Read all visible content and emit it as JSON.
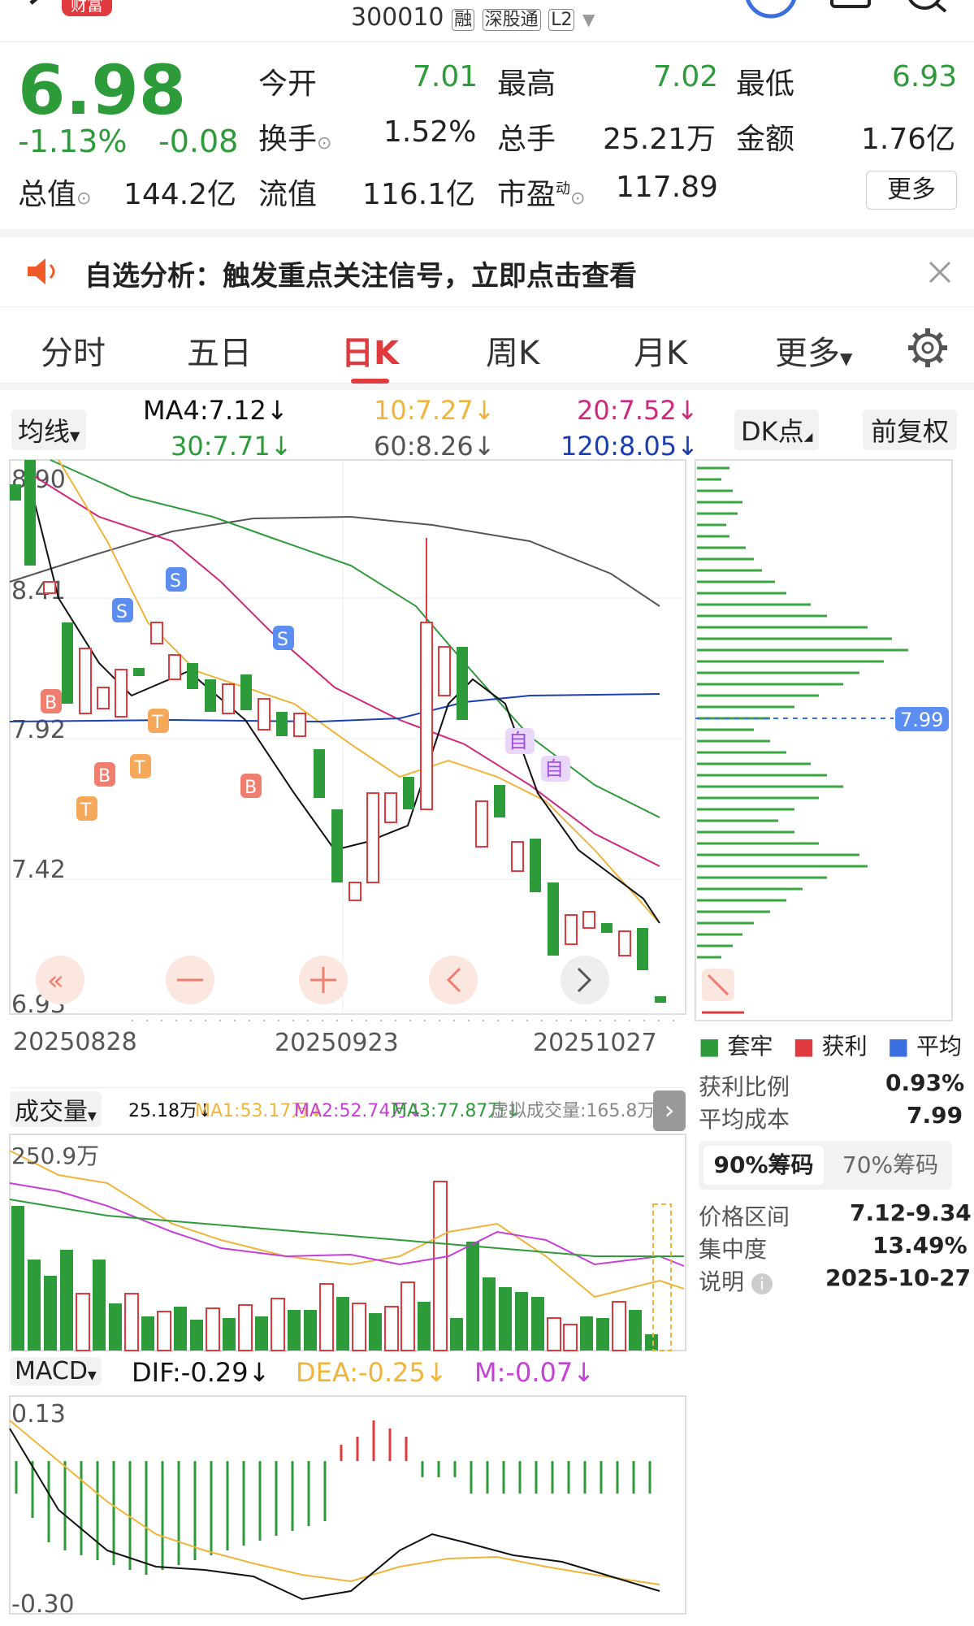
{
  "header": {
    "back_icon": "back-chevron-icon",
    "brand_badge": "财富",
    "stock_code": "300010",
    "tag_rong": "融",
    "tag_exchange": "深股通",
    "tag_l2": "L2",
    "dropdown_icon": "triangle-down-icon",
    "right_icons": [
      "circle-logo-icon",
      "square-icon",
      "search-icon"
    ]
  },
  "quote": {
    "price": "6.98",
    "change_pct": "-1.13%",
    "change_amt": "-0.08",
    "fields": [
      {
        "label": "今开",
        "value": "7.01"
      },
      {
        "label": "最高",
        "value": "7.02"
      },
      {
        "label": "最低",
        "value": "6.93"
      },
      {
        "label": "换手",
        "value": "1.52%"
      },
      {
        "label": "总手",
        "value": "25.21万"
      },
      {
        "label": "金额",
        "value": "1.76亿"
      },
      {
        "label": "总值",
        "value": "144.2亿"
      },
      {
        "label": "流值",
        "value": "116.1亿"
      },
      {
        "label": "市盈",
        "value": "117.89"
      }
    ],
    "pe_superscript": "动",
    "more_button": "更多"
  },
  "alert": {
    "text": "自选分析：触发重点关注信号，立即点击查看",
    "colors": {
      "speaker": "#f05a28"
    }
  },
  "tabs": {
    "items": [
      "分时",
      "五日",
      "日K",
      "周K",
      "月K",
      "更多"
    ],
    "active": "日K",
    "settings_icon": "gear-icon"
  },
  "ma_bar": {
    "selector": "均线",
    "ma4": "MA4:7.12",
    "ma10": "10:7.27",
    "ma20": "20:7.52",
    "ma30": "30:7.71",
    "ma60": "60:8.26",
    "ma120": "120:8.05",
    "dk_button": "DK点",
    "fq_button": "前复权"
  },
  "kline": {
    "y_labels": [
      "8.90",
      "8.41",
      "7.92",
      "7.42",
      "6.93"
    ],
    "x_labels": [
      "20250828",
      "20250923",
      "20251027"
    ],
    "signals": {
      "S": "S",
      "B": "B",
      "T": "T",
      "Z": "自"
    },
    "nav_buttons": [
      "double-left-icon",
      "minus-icon",
      "plus-icon",
      "left-icon",
      "right-icon"
    ]
  },
  "chips": {
    "price_tag": "7.99",
    "legend": [
      "套牢",
      "获利",
      "平均"
    ],
    "profit_ratio_label": "获利比例",
    "profit_ratio": "0.93%",
    "avg_cost_label": "平均成本",
    "avg_cost": "7.99",
    "tab90": "90%筹码",
    "tab70": "70%筹码",
    "range_label": "价格区间",
    "range": "7.12-9.34",
    "conc_label": "集中度",
    "conc": "13.49%",
    "note_label": "说明",
    "note": "2025-10-27"
  },
  "volume": {
    "selector": "成交量",
    "v": "25.18万",
    "ma1": "MA1:53.17万",
    "ma2": "MA2:52.74万",
    "ma3": "MA3:77.87万",
    "virtual": "虚拟成交量:165.8万",
    "max_label": "250.9万"
  },
  "macd": {
    "selector": "MACD",
    "dif": "DIF:-0.29",
    "dea": "DEA:-0.25",
    "m": "M:-0.07",
    "top": "0.13",
    "bottom": "-0.30"
  }
}
